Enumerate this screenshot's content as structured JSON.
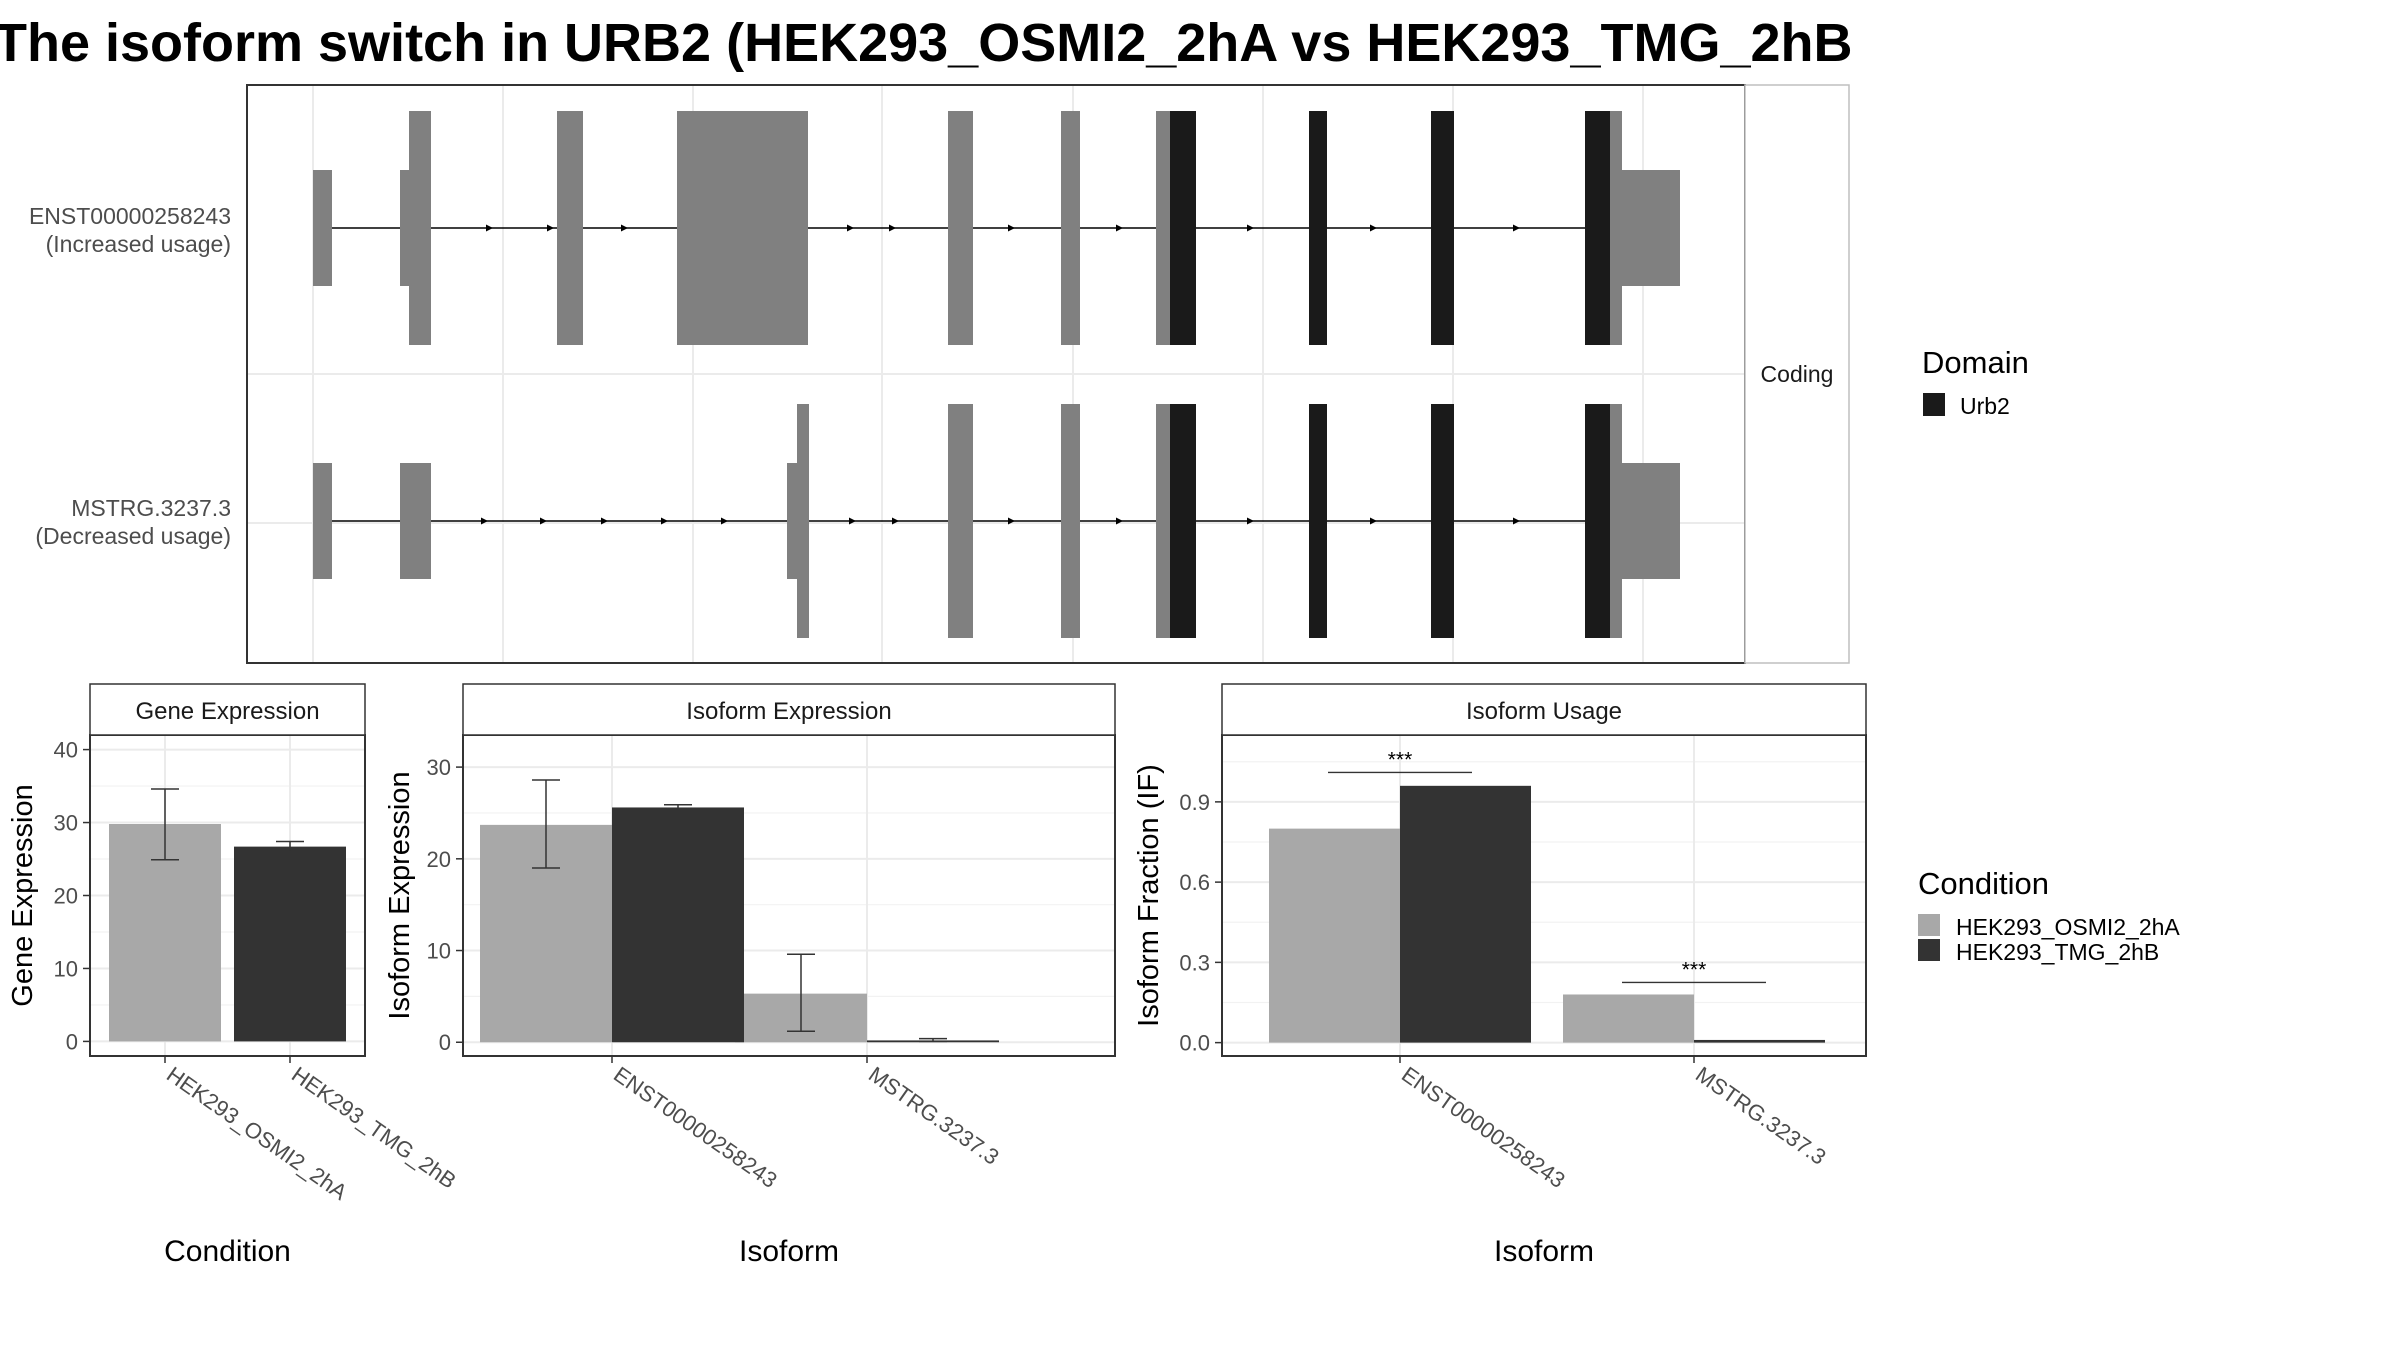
{
  "title": "The isoform switch in URB2 (HEK293_OSMI2_2hA vs HEK293_TMG_2hB",
  "colors": {
    "utr": "#808080",
    "domain": "#1a1a1a",
    "condition_a": "#a8a8a8",
    "condition_b": "#333333",
    "grid": "#ebebeb",
    "strip_fill": "#ffffff",
    "panel_border": "#333333"
  },
  "structure": {
    "strip_label": "Coding",
    "transcripts": [
      {
        "id": "ENST00000258243",
        "usage": "(Increased usage)"
      },
      {
        "id": "MSTRG.3237.3",
        "usage": "(Decreased usage)"
      }
    ]
  },
  "legends": {
    "domain": {
      "title": "Domain",
      "items": [
        {
          "label": "Urb2",
          "color": "#1a1a1a"
        }
      ]
    },
    "condition": {
      "title": "Condition",
      "items": [
        {
          "label": "HEK293_OSMI2_2hA",
          "color": "#a8a8a8"
        },
        {
          "label": "HEK293_TMG_2hB",
          "color": "#333333"
        }
      ]
    }
  },
  "chart_data": [
    {
      "type": "bar",
      "title": "Gene Expression",
      "xlabel": "Condition",
      "ylabel": "Gene Expression",
      "categories": [
        "HEK293_OSMI2_2hA",
        "HEK293_TMG_2hB"
      ],
      "values": [
        29.8,
        26.7
      ],
      "error_low": [
        24.9,
        26.0
      ],
      "error_high": [
        34.6,
        27.4
      ],
      "ylim": [
        -2,
        42
      ],
      "yticks": [
        0,
        10,
        20,
        30,
        40
      ],
      "ytick_labels": [
        "0",
        "10",
        "20",
        "30",
        "40"
      ]
    },
    {
      "type": "bar",
      "title": "Isoform Expression",
      "xlabel": "Isoform",
      "ylabel": "Isoform Expression",
      "categories": [
        "ENST00000258243",
        "MSTRG.3237.3"
      ],
      "series": [
        {
          "name": "HEK293_OSMI2_2hA",
          "values": [
            23.7,
            5.3
          ],
          "error_low": [
            19.0,
            1.2
          ],
          "error_high": [
            28.6,
            9.6
          ]
        },
        {
          "name": "HEK293_TMG_2hB",
          "values": [
            25.6,
            0.2
          ],
          "error_low": [
            25.3,
            0.1
          ],
          "error_high": [
            25.9,
            0.4
          ]
        }
      ],
      "ylim": [
        -1.5,
        33.5
      ],
      "yticks": [
        0,
        10,
        20,
        30
      ],
      "ytick_labels": [
        "0",
        "10",
        "20",
        "30"
      ]
    },
    {
      "type": "bar",
      "title": "Isoform Usage",
      "xlabel": "Isoform",
      "ylabel": "Isoform Fraction (IF)",
      "categories": [
        "ENST00000258243",
        "MSTRG.3237.3"
      ],
      "series": [
        {
          "name": "HEK293_OSMI2_2hA",
          "values": [
            0.8,
            0.18
          ]
        },
        {
          "name": "HEK293_TMG_2hB",
          "values": [
            0.96,
            0.01
          ]
        }
      ],
      "significance": [
        {
          "category": "ENST00000258243",
          "label": "***",
          "y": 1.01
        },
        {
          "category": "MSTRG.3237.3",
          "label": "***",
          "y": 0.225
        }
      ],
      "ylim": [
        -0.05,
        1.15
      ],
      "yticks": [
        0.0,
        0.3,
        0.6,
        0.9
      ],
      "ytick_labels": [
        "0.0",
        "0.3",
        "0.6",
        "0.9"
      ]
    }
  ]
}
